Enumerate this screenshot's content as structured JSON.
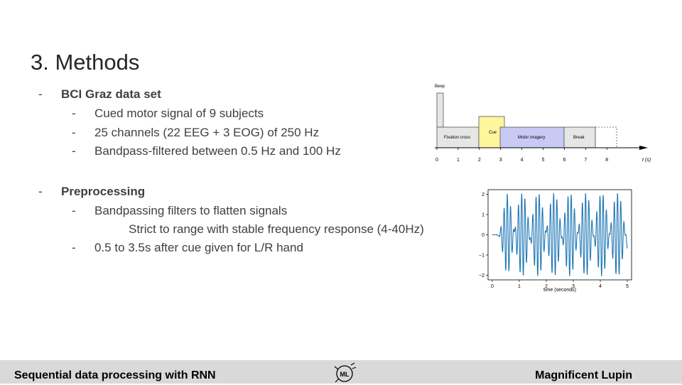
{
  "slide": {
    "title": "3. Methods",
    "sections": [
      {
        "heading": "BCI Graz data set",
        "items": [
          "Cued motor signal of 9 subjects",
          "25 channels (22 EEG + 3 EOG) of 250 Hz",
          "Bandpass-filtered between 0.5 Hz and 100 Hz"
        ]
      },
      {
        "heading": "Preprocessing",
        "items": [
          "Bandpassing filters to flatten signals",
          "Strict to range with stable frequency response (4-40Hz)",
          "0.5 to 3.5s after cue given for  L/R hand"
        ]
      }
    ]
  },
  "timeline": {
    "beep_label": "Beep",
    "segments": [
      "Fixation cross",
      "Cue",
      "Motor imagery",
      "Break"
    ],
    "ticks": [
      "0",
      "1",
      "2",
      "3",
      "4",
      "5",
      "6",
      "7",
      "8"
    ],
    "axis_label": "t (s)",
    "colors": {
      "fixation": "#e6e6e6",
      "cue": "#fff59d",
      "motor": "#c9c9f5",
      "break": "#e6e6e6"
    }
  },
  "chart_data": {
    "type": "line",
    "x_ticks": [
      "0",
      "1",
      "2",
      "3",
      "4",
      "5"
    ],
    "y_ticks": [
      "2",
      "1",
      "0",
      "−1",
      "−2"
    ],
    "xlabel": "time (seconds)",
    "xlim": [
      0,
      5
    ],
    "ylim": [
      -2.2,
      2.2
    ],
    "line_color": "#1f77b4"
  },
  "footer": {
    "left": "Sequential data processing with RNN",
    "right": "Magnificent Lupin",
    "logo_icon": "lupin-logo-icon"
  }
}
